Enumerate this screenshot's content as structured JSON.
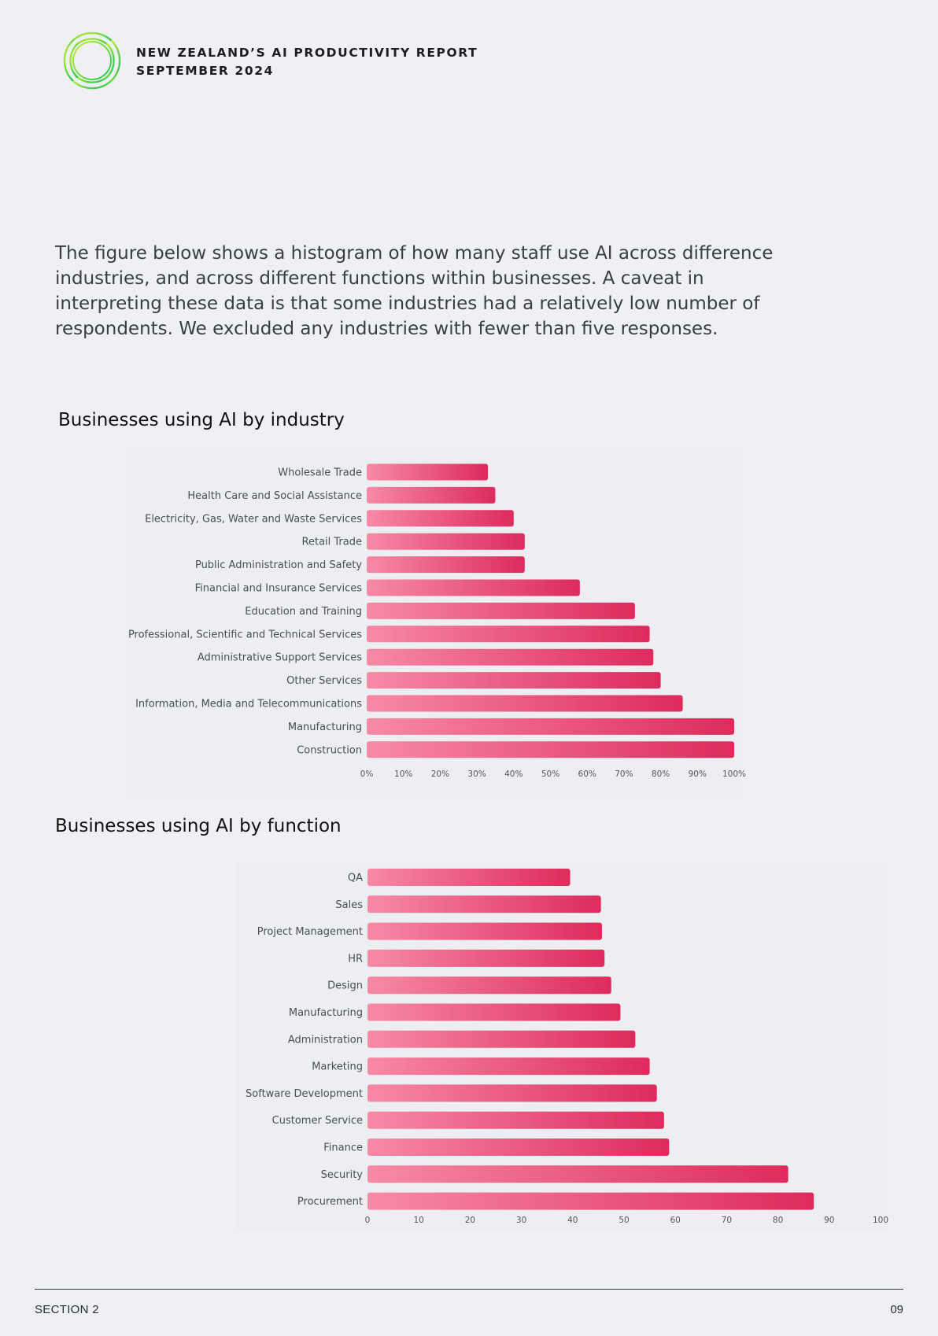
{
  "header": {
    "report_title_line1": "NEW ZEALAND’S AI PRODUCTIVITY REPORT",
    "report_title_line2": "SEPTEMBER 2024"
  },
  "intro_text": "The figure below shows a histogram of how many staff use AI across difference industries, and across different functions within businesses. A caveat in interpreting these data is that some industries had a relatively low number of respondents. We excluded any industries with fewer than five responses.",
  "colors": {
    "bar_start": "#f78aa6",
    "bar_end": "#dd2b5c",
    "background": "#eef0f3"
  },
  "chart_data": [
    {
      "type": "bar",
      "orientation": "horizontal",
      "title": "Businesses using AI by industry",
      "categories": [
        "Wholesale Trade",
        "Health Care and Social Assistance",
        "Electricity, Gas, Water and Waste Services",
        "Retail Trade",
        "Public Administration and Safety",
        "Financial and Insurance Services",
        "Education and Training",
        "Professional, Scientific and Technical Services",
        "Administrative Support Services",
        "Other Services",
        "Information, Media and Telecommunications",
        "Manufacturing",
        "Construction"
      ],
      "values": [
        33,
        35,
        40,
        43,
        43,
        58,
        73,
        77,
        78,
        80,
        86,
        100,
        100
      ],
      "xlim": [
        0,
        100
      ],
      "tick_labels": [
        "0%",
        "10%",
        "20%",
        "30%",
        "40%",
        "50%",
        "60%",
        "70%",
        "80%",
        "90%",
        "100%"
      ],
      "grid": false
    },
    {
      "type": "bar",
      "orientation": "horizontal",
      "title": "Businesses using AI by function",
      "categories": [
        "QA",
        "Sales",
        "Project Management",
        "HR",
        "Design",
        "Manufacturing",
        "Administration",
        "Marketing",
        "Software Development",
        "Customer Service",
        "Finance",
        "Security",
        "Procurement"
      ],
      "values": [
        39.5,
        45.5,
        45.7,
        46.2,
        47.5,
        49.3,
        52.2,
        55,
        56.4,
        57.8,
        58.8,
        82,
        87
      ],
      "xlim": [
        0,
        100
      ],
      "tick_labels": [
        "0",
        "10",
        "20",
        "30",
        "40",
        "50",
        "60",
        "70",
        "80",
        "90",
        "100"
      ],
      "grid": false
    }
  ],
  "footer": {
    "section": "SECTION 2",
    "page_number": "09"
  }
}
